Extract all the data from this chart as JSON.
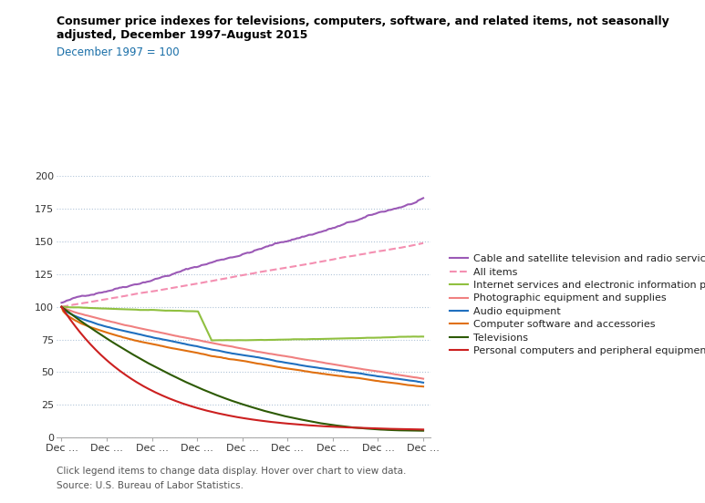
{
  "title_line1": "Consumer price indexes for televisions, computers, software, and related items, not seasonally",
  "title_line2": "adjusted, December 1997–August 2015",
  "subtitle": "December 1997 = 100",
  "footer_line1": "Click legend items to change data display. Hover over chart to view data.",
  "footer_line2": "Source: U.S. Bureau of Labor Statistics.",
  "ylim": [
    0,
    200
  ],
  "yticks": [
    0,
    25,
    50,
    75,
    100,
    125,
    150,
    175,
    200
  ],
  "n_points": 213,
  "x_tick_labels": [
    "Dec ...",
    "Dec ...",
    "Dec ...",
    "Dec ...",
    "Dec ...",
    "Dec ...",
    "Dec ...",
    "Dec ...",
    "Dec ..."
  ],
  "series": {
    "cable": {
      "label": "Cable and satellite television and radio service",
      "color": "#9b59b6",
      "linestyle": "-",
      "linewidth": 1.5
    },
    "all_items": {
      "label": "All items",
      "color": "#f48fb1",
      "linestyle": "--",
      "linewidth": 1.5
    },
    "internet": {
      "label": "Internet services and electronic information providers",
      "color": "#90c040",
      "linestyle": "-",
      "linewidth": 1.5
    },
    "photo": {
      "label": "Photographic equipment and supplies",
      "color": "#f08080",
      "linestyle": "-",
      "linewidth": 1.5
    },
    "audio": {
      "label": "Audio equipment",
      "color": "#1f6fbf",
      "linestyle": "-",
      "linewidth": 1.5
    },
    "software": {
      "label": "Computer software and accessories",
      "color": "#e07010",
      "linestyle": "-",
      "linewidth": 1.5
    },
    "tv": {
      "label": "Televisions",
      "color": "#2d5a04",
      "linestyle": "-",
      "linewidth": 1.5
    },
    "pc": {
      "label": "Personal computers and peripheral equipment",
      "color": "#cc2020",
      "linestyle": "-",
      "linewidth": 1.5
    }
  },
  "background_color": "#ffffff",
  "grid_color": "#b0c4d8",
  "title_color": "#000000",
  "subtitle_color": "#1a6fa8",
  "footer_color": "#555555"
}
